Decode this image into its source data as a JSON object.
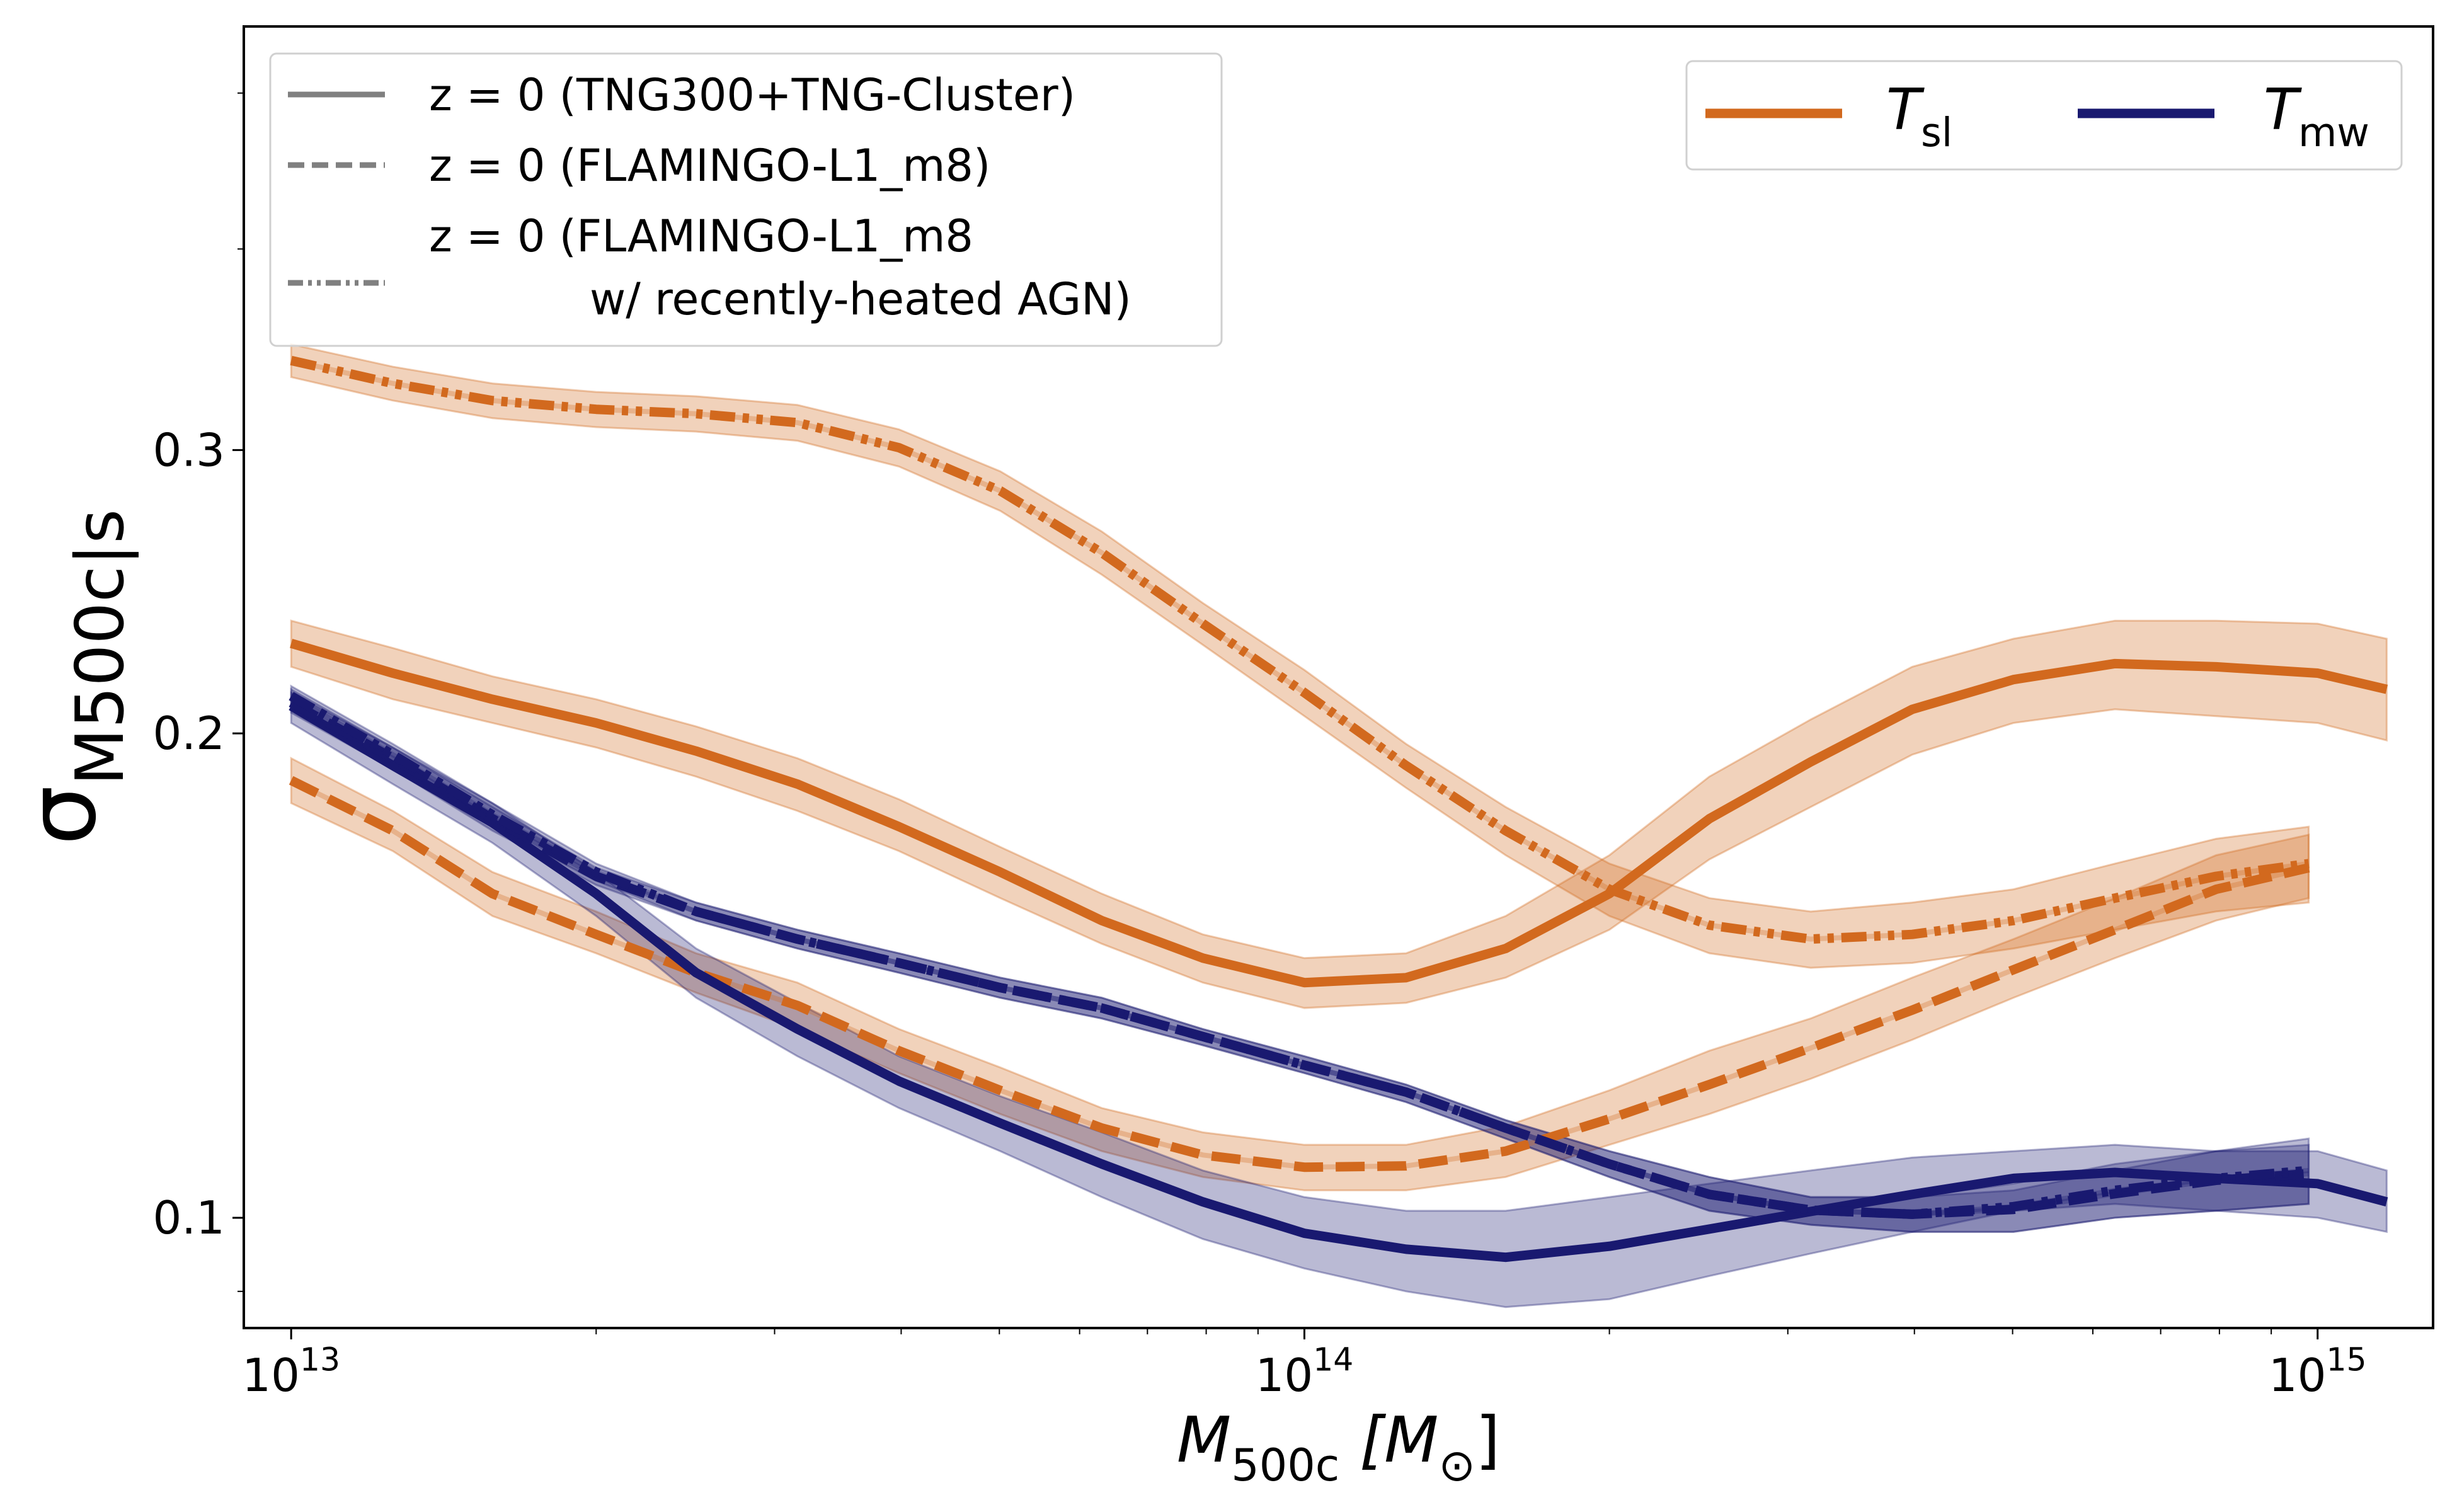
{
  "chart_data": {
    "type": "line",
    "xlabel": "M_{500c} [M_{⊙}]",
    "ylabel": "σ_{M500c|s}",
    "xscale": "log",
    "yscale": "log",
    "xlim": [
      8980000000000.0,
      1300000000000000.0
    ],
    "ylim": [
      0.0854,
      0.55
    ],
    "xticks": [
      {
        "value": 10000000000000.0,
        "label": "10^{13}"
      },
      {
        "value": 100000000000000.0,
        "label": "10^{14}"
      },
      {
        "value": 1000000000000000.0,
        "label": "10^{15}"
      }
    ],
    "x_minor_ticks": [
      20000000000000.0,
      30000000000000.0,
      40000000000000.0,
      50000000000000.0,
      60000000000000.0,
      70000000000000.0,
      80000000000000.0,
      90000000000000.0,
      200000000000000.0,
      300000000000000.0,
      400000000000000.0,
      500000000000000.0,
      600000000000000.0,
      700000000000000.0,
      800000000000000.0,
      900000000000000.0
    ],
    "yticks": [
      0.1,
      0.2,
      0.3
    ],
    "y_minor_ticks": [
      0.09,
      0.4,
      0.5
    ],
    "series": [
      {
        "color": "#d2691e",
        "linestyle": "solid",
        "x": [
          10000000000000.0,
          12600000000000.0,
          15800000000000.0,
          20000000000000.0,
          25100000000000.0,
          31600000000000.0,
          39800000000000.0,
          50100000000000.0,
          63100000000000.0,
          79400000000000.0,
          100000000000000.0,
          126000000000000.0,
          158000000000000.0,
          200000000000000.0,
          251000000000000.0,
          316000000000000.0,
          398000000000000.0,
          501000000000000.0,
          631000000000000.0,
          794000000000000.0,
          1000000000000000.0,
          1170000000000000.0
        ],
        "values": [
          0.2275,
          0.218,
          0.21,
          0.203,
          0.195,
          0.186,
          0.175,
          0.164,
          0.153,
          0.145,
          0.14,
          0.141,
          0.147,
          0.159,
          0.177,
          0.192,
          0.207,
          0.216,
          0.221,
          0.22,
          0.218,
          0.213
        ],
        "lower": [
          0.22,
          0.21,
          0.203,
          0.196,
          0.188,
          0.179,
          0.169,
          0.158,
          0.148,
          0.14,
          0.135,
          0.136,
          0.141,
          0.151,
          0.167,
          0.18,
          0.194,
          0.203,
          0.207,
          0.205,
          0.203,
          0.198
        ],
        "upper": [
          0.235,
          0.226,
          0.217,
          0.21,
          0.202,
          0.193,
          0.182,
          0.17,
          0.159,
          0.15,
          0.145,
          0.146,
          0.154,
          0.168,
          0.188,
          0.204,
          0.22,
          0.229,
          0.235,
          0.235,
          0.234,
          0.229
        ]
      },
      {
        "color": "#d2691e",
        "linestyle": "dashed",
        "x": [
          10000000000000.0,
          12600000000000.0,
          15800000000000.0,
          20000000000000.0,
          25100000000000.0,
          31600000000000.0,
          39800000000000.0,
          50100000000000.0,
          63100000000000.0,
          79400000000000.0,
          100000000000000.0,
          126000000000000.0,
          158000000000000.0,
          200000000000000.0,
          251000000000000.0,
          316000000000000.0,
          398000000000000.0,
          501000000000000.0,
          631000000000000.0,
          794000000000000.0,
          980000000000000.0
        ],
        "values": [
          0.187,
          0.174,
          0.159,
          0.15,
          0.142,
          0.1355,
          0.127,
          0.12,
          0.1137,
          0.1094,
          0.1075,
          0.1077,
          0.11,
          0.1152,
          0.121,
          0.1275,
          0.1346,
          0.1426,
          0.151,
          0.16,
          0.165
        ],
        "lower": [
          0.181,
          0.169,
          0.154,
          0.146,
          0.138,
          0.131,
          0.123,
          0.116,
          0.11,
          0.106,
          0.104,
          0.104,
          0.106,
          0.111,
          0.116,
          0.122,
          0.129,
          0.137,
          0.145,
          0.153,
          0.158
        ],
        "upper": [
          0.193,
          0.179,
          0.164,
          0.155,
          0.146,
          0.14,
          0.131,
          0.124,
          0.117,
          0.113,
          0.111,
          0.111,
          0.114,
          0.12,
          0.127,
          0.133,
          0.141,
          0.149,
          0.158,
          0.168,
          0.173
        ]
      },
      {
        "color": "#d2691e",
        "linestyle": "dashdot",
        "x": [
          10000000000000.0,
          12600000000000.0,
          15800000000000.0,
          20000000000000.0,
          25100000000000.0,
          31600000000000.0,
          39800000000000.0,
          50100000000000.0,
          63100000000000.0,
          79400000000000.0,
          100000000000000.0,
          126000000000000.0,
          158000000000000.0,
          200000000000000.0,
          251000000000000.0,
          316000000000000.0,
          398000000000000.0,
          501000000000000.0,
          631000000000000.0,
          794000000000000.0,
          980000000000000.0
        ],
        "values": [
          0.341,
          0.33,
          0.322,
          0.318,
          0.316,
          0.312,
          0.301,
          0.283,
          0.259,
          0.234,
          0.212,
          0.191,
          0.174,
          0.16,
          0.152,
          0.149,
          0.15,
          0.153,
          0.158,
          0.163,
          0.166
        ],
        "lower": [
          0.333,
          0.322,
          0.314,
          0.31,
          0.308,
          0.304,
          0.293,
          0.275,
          0.251,
          0.227,
          0.205,
          0.185,
          0.168,
          0.154,
          0.146,
          0.143,
          0.144,
          0.147,
          0.151,
          0.155,
          0.157
        ],
        "upper": [
          0.349,
          0.338,
          0.33,
          0.326,
          0.324,
          0.32,
          0.309,
          0.291,
          0.267,
          0.241,
          0.219,
          0.197,
          0.18,
          0.166,
          0.158,
          0.155,
          0.157,
          0.16,
          0.166,
          0.172,
          0.175
        ]
      },
      {
        "color": "#191970",
        "linestyle": "solid",
        "x": [
          10000000000000.0,
          12600000000000.0,
          15800000000000.0,
          20000000000000.0,
          25100000000000.0,
          31600000000000.0,
          39800000000000.0,
          50100000000000.0,
          63100000000000.0,
          79400000000000.0,
          100000000000000.0,
          126000000000000.0,
          158000000000000.0,
          200000000000000.0,
          251000000000000.0,
          316000000000000.0,
          398000000000000.0,
          501000000000000.0,
          631000000000000.0,
          794000000000000.0,
          1000000000000000.0,
          1170000000000000.0
        ],
        "values": [
          0.208,
          0.191,
          0.176,
          0.159,
          0.142,
          0.131,
          0.1216,
          0.1145,
          0.108,
          0.1023,
          0.0978,
          0.0956,
          0.0945,
          0.096,
          0.0984,
          0.1009,
          0.1034,
          0.1058,
          0.1067,
          0.1058,
          0.105,
          0.1023
        ],
        "lower": [
          0.203,
          0.186,
          0.171,
          0.154,
          0.137,
          0.126,
          0.117,
          0.11,
          0.103,
          0.097,
          0.093,
          0.09,
          0.088,
          0.089,
          0.092,
          0.095,
          0.098,
          0.101,
          0.102,
          0.101,
          0.1,
          0.098
        ],
        "upper": [
          0.213,
          0.196,
          0.181,
          0.164,
          0.147,
          0.136,
          0.126,
          0.119,
          0.113,
          0.107,
          0.103,
          0.101,
          0.101,
          0.103,
          0.105,
          0.107,
          0.109,
          0.11,
          0.111,
          0.11,
          0.11,
          0.107
        ]
      },
      {
        "color": "#191970",
        "linestyle": "dashed",
        "x": [
          10000000000000.0,
          12600000000000.0,
          15800000000000.0,
          20000000000000.0,
          25100000000000.0,
          31600000000000.0,
          39800000000000.0,
          50100000000000.0,
          63100000000000.0,
          79400000000000.0,
          100000000000000.0,
          126000000000000.0,
          158000000000000.0,
          200000000000000.0,
          251000000000000.0,
          316000000000000.0,
          398000000000000.0,
          501000000000000.0,
          631000000000000.0,
          794000000000000.0,
          980000000000000.0
        ],
        "values": [
          0.209,
          0.193,
          0.177,
          0.163,
          0.155,
          0.149,
          0.144,
          0.139,
          0.135,
          0.1296,
          0.1244,
          0.1197,
          0.1137,
          0.108,
          0.1034,
          0.1011,
          0.1005,
          0.1012,
          0.1035,
          0.1055,
          0.1065
        ],
        "lower": [
          0.206,
          0.19,
          0.174,
          0.161,
          0.153,
          0.147,
          0.142,
          0.137,
          0.133,
          0.128,
          0.123,
          0.118,
          0.112,
          0.106,
          0.101,
          0.099,
          0.098,
          0.098,
          0.1,
          0.101,
          0.102
        ],
        "upper": [
          0.212,
          0.196,
          0.18,
          0.165,
          0.157,
          0.151,
          0.146,
          0.141,
          0.137,
          0.131,
          0.126,
          0.121,
          0.115,
          0.11,
          0.106,
          0.103,
          0.103,
          0.104,
          0.107,
          0.11,
          0.111
        ]
      },
      {
        "color": "#191970",
        "linestyle": "dashdot",
        "x": [
          10000000000000.0,
          12600000000000.0,
          15800000000000.0,
          20000000000000.0,
          25100000000000.0,
          31600000000000.0,
          39800000000000.0,
          50100000000000.0,
          63100000000000.0,
          79400000000000.0,
          100000000000000.0,
          126000000000000.0,
          158000000000000.0,
          200000000000000.0,
          251000000000000.0,
          316000000000000.0,
          398000000000000.0,
          501000000000000.0,
          631000000000000.0,
          794000000000000.0,
          980000000000000.0
        ],
        "values": [
          0.211,
          0.194,
          0.178,
          0.164,
          0.155,
          0.149,
          0.144,
          0.139,
          0.135,
          0.1296,
          0.1244,
          0.1197,
          0.1137,
          0.108,
          0.1034,
          0.1011,
          0.1005,
          0.1016,
          0.104,
          0.1058,
          0.107
        ],
        "lower": [
          0.208,
          0.191,
          0.175,
          0.162,
          0.153,
          0.147,
          0.142,
          0.137,
          0.133,
          0.128,
          0.123,
          0.118,
          0.112,
          0.106,
          0.101,
          0.099,
          0.098,
          0.098,
          0.1,
          0.101,
          0.102
        ],
        "upper": [
          0.214,
          0.197,
          0.181,
          0.166,
          0.157,
          0.151,
          0.146,
          0.141,
          0.137,
          0.131,
          0.126,
          0.121,
          0.115,
          0.11,
          0.106,
          0.103,
          0.103,
          0.105,
          0.108,
          0.11,
          0.112
        ]
      }
    ],
    "legends": [
      {
        "corner": "upper left",
        "entries": [
          {
            "label": "z = 0 (TNG300+TNG-Cluster)",
            "linestyle": "solid",
            "color": "#808080"
          },
          {
            "label": "z = 0 (FLAMINGO-L1_m8)",
            "linestyle": "dashed",
            "color": "#808080"
          },
          {
            "label": "z = 0 (FLAMINGO-L1_m8\nw/ recently-heated AGN)",
            "linestyle": "dashdot",
            "color": "#808080"
          }
        ]
      },
      {
        "corner": "upper right",
        "entries": [
          {
            "label": "T_{sl}",
            "linestyle": "solid",
            "color": "#d2691e"
          },
          {
            "label": "T_{mw}",
            "linestyle": "solid",
            "color": "#191970"
          }
        ]
      }
    ]
  }
}
